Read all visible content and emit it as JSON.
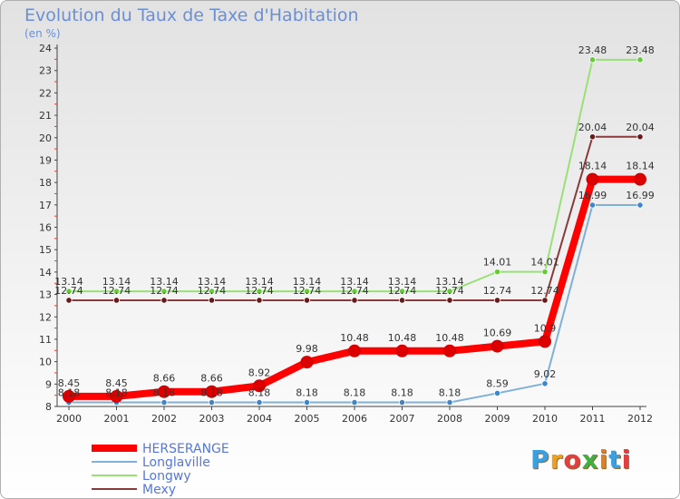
{
  "chart_data": {
    "type": "line",
    "title": "Evolution du Taux de Taxe d'Habitation",
    "subtitle": "(en %)",
    "x": [
      "2000",
      "2001",
      "2002",
      "2003",
      "2004",
      "2005",
      "2006",
      "2007",
      "2008",
      "2009",
      "2010",
      "2011",
      "2012"
    ],
    "ylim": [
      8,
      24
    ],
    "yticks": [
      8,
      9,
      10,
      11,
      12,
      13,
      14,
      15,
      16,
      17,
      18,
      19,
      20,
      21,
      22,
      23,
      24
    ],
    "grid": false,
    "legend_position": "bottom-left",
    "series": [
      {
        "name": "HERSERANGE",
        "color": "#ff0000",
        "point_color": "#dd0000",
        "width": 8,
        "values": [
          8.45,
          8.45,
          8.66,
          8.66,
          8.92,
          9.98,
          10.48,
          10.48,
          10.48,
          10.69,
          10.9,
          18.14,
          18.14
        ],
        "labels": [
          "8.45",
          "8.45",
          "8.66",
          "8.66",
          "8.92",
          "9.98",
          "10.48",
          "10.48",
          "10.48",
          "10.69",
          "10.9",
          "18.14",
          "18.14"
        ]
      },
      {
        "name": "Longlaville",
        "color": "#7fb0d8",
        "point_color": "#3f86c8",
        "width": 2,
        "values": [
          8.18,
          8.18,
          8.18,
          8.18,
          8.18,
          8.18,
          8.18,
          8.18,
          8.18,
          8.59,
          9.02,
          16.99,
          16.99
        ],
        "labels": [
          "8.18",
          "8.18",
          "8.18",
          "8.18",
          "8.18",
          "8.18",
          "8.18",
          "8.18",
          "8.18",
          "8.59",
          "9.02",
          "16.99",
          "16.99"
        ]
      },
      {
        "name": "Longwy",
        "color": "#99e077",
        "point_color": "#66cc33",
        "width": 2,
        "values": [
          13.14,
          13.14,
          13.14,
          13.14,
          13.14,
          13.14,
          13.14,
          13.14,
          13.14,
          14.01,
          14.01,
          23.48,
          23.48
        ],
        "labels": [
          "13.14",
          "13.14",
          "13.14",
          "13.14",
          "13.14",
          "13.14",
          "13.14",
          "13.14",
          "13.14",
          "14.01",
          "14.01",
          "23.48",
          "23.48"
        ]
      },
      {
        "name": "Mexy",
        "color": "#8a3a3a",
        "point_color": "#661a1a",
        "width": 2,
        "values": [
          12.74,
          12.74,
          12.74,
          12.74,
          12.74,
          12.74,
          12.74,
          12.74,
          12.74,
          12.74,
          12.74,
          20.04,
          20.04
        ],
        "labels": [
          "12.74",
          "12.74",
          "12.74",
          "12.74",
          "12.74",
          "12.74",
          "12.74",
          "12.74",
          "12.74",
          "12.74",
          "12.74",
          "20.04",
          "20.04"
        ]
      }
    ]
  },
  "logo": {
    "text": "Proxiti",
    "letter_colors": [
      "#3aa0e0",
      "#f0a020",
      "#e04040",
      "#40b040",
      "#e08020",
      "#3aa0e0",
      "#e04040"
    ]
  }
}
